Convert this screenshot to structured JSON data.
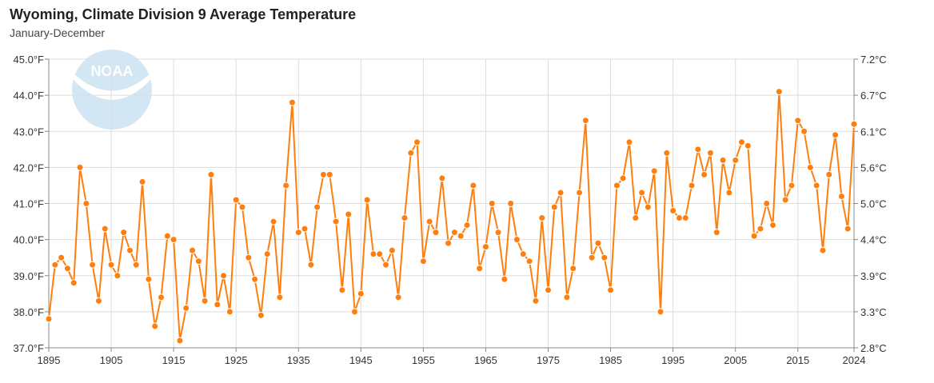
{
  "chart_data": {
    "type": "line",
    "title": "Wyoming, Climate Division 9 Average Temperature",
    "subtitle": "January-December",
    "xlabel": "",
    "ylabel": "",
    "xlim": [
      1895,
      2024
    ],
    "ylim": [
      37.0,
      45.0
    ],
    "x_ticks": [
      "1895",
      "1905",
      "1915",
      "1925",
      "1935",
      "1945",
      "1955",
      "1965",
      "1975",
      "1985",
      "1995",
      "2005",
      "2015",
      "2024"
    ],
    "y_ticks_left": [
      "37.0°F",
      "38.0°F",
      "39.0°F",
      "40.0°F",
      "41.0°F",
      "42.0°F",
      "43.0°F",
      "44.0°F",
      "45.0°F"
    ],
    "y_ticks_right": [
      "2.8°C",
      "3.3°C",
      "3.9°C",
      "4.4°C",
      "5.0°C",
      "5.6°C",
      "6.1°C",
      "6.7°C",
      "7.2°C"
    ],
    "grid": true,
    "color": "#ff7f0e",
    "logo_text": "NOAA",
    "series": [
      {
        "name": "Average Temperature (°F)",
        "start_year": 1895,
        "values": [
          37.8,
          39.3,
          39.5,
          39.2,
          38.8,
          42.0,
          41.0,
          39.3,
          38.3,
          40.3,
          39.3,
          39.0,
          40.2,
          39.7,
          39.3,
          41.6,
          38.9,
          37.6,
          38.4,
          40.1,
          40.0,
          37.2,
          38.1,
          39.7,
          39.4,
          38.3,
          41.8,
          38.2,
          39.0,
          38.0,
          41.1,
          40.9,
          39.5,
          38.9,
          37.9,
          39.6,
          40.5,
          38.4,
          41.5,
          43.8,
          40.2,
          40.3,
          39.3,
          40.9,
          41.8,
          41.8,
          40.5,
          38.6,
          40.7,
          38.0,
          38.5,
          41.1,
          39.6,
          39.6,
          39.3,
          39.7,
          38.4,
          40.6,
          42.4,
          42.7,
          39.4,
          40.5,
          40.2,
          41.7,
          39.9,
          40.2,
          40.1,
          40.4,
          41.5,
          39.2,
          39.8,
          41.0,
          40.2,
          38.9,
          41.0,
          40.0,
          39.6,
          39.4,
          38.3,
          40.6,
          38.6,
          40.9,
          41.3,
          38.4,
          39.2,
          41.3,
          43.3,
          39.5,
          39.9,
          39.5,
          38.6,
          41.5,
          41.7,
          42.7,
          40.6,
          41.3,
          40.9,
          41.9,
          38.0,
          42.4,
          40.8,
          40.6,
          40.6,
          41.5,
          42.5,
          41.8,
          42.4,
          40.2,
          42.2,
          41.3,
          42.2,
          42.7,
          42.6,
          40.1,
          40.3,
          41.0,
          40.4,
          44.1,
          41.1,
          41.5,
          43.3,
          43.0,
          42.0,
          41.5,
          39.7,
          41.8,
          42.9,
          41.2,
          40.3,
          43.2
        ]
      }
    ]
  }
}
